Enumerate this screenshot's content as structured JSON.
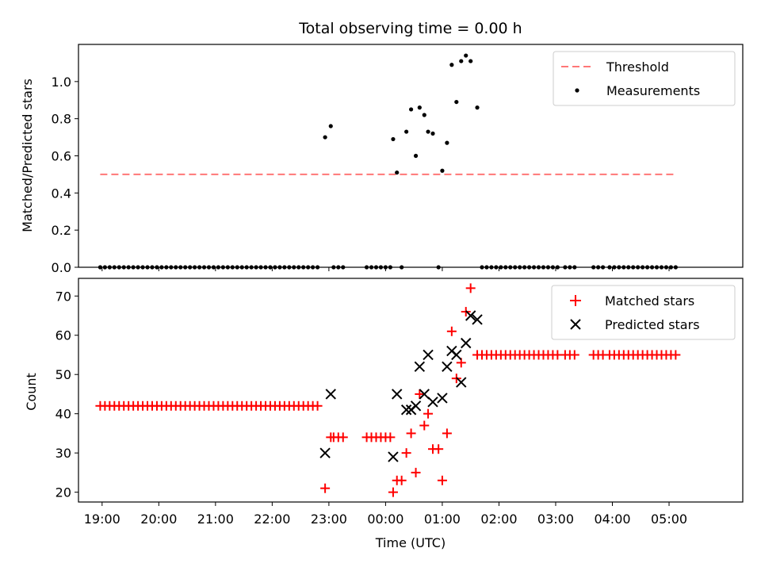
{
  "chart_data": [
    {
      "type": "scatter",
      "title": "Total observing time = 0.00 h",
      "ylabel": "Matched/Predicted stars",
      "xlabel": "",
      "xlim": [
        "18:35",
        "06:18"
      ],
      "ylim": [
        0,
        1.2
      ],
      "yticks": [
        "0.0",
        "0.2",
        "0.4",
        "0.6",
        "0.8",
        "1.0"
      ],
      "legend_position": "top-right",
      "grid": false,
      "threshold": {
        "name": "Threshold",
        "value": 0.5,
        "x_start": "18:58",
        "x_end": "05:06",
        "color": "#ff7777",
        "style": "dashed"
      },
      "measurements": {
        "name": "Measurements",
        "color": "#000000",
        "points": [
          [
            "18:58",
            0
          ],
          [
            "19:03",
            0
          ],
          [
            "19:08",
            0
          ],
          [
            "19:13",
            0
          ],
          [
            "19:18",
            0
          ],
          [
            "19:23",
            0
          ],
          [
            "19:28",
            0
          ],
          [
            "19:33",
            0
          ],
          [
            "19:38",
            0
          ],
          [
            "19:43",
            0
          ],
          [
            "19:48",
            0
          ],
          [
            "19:53",
            0
          ],
          [
            "19:58",
            0
          ],
          [
            "20:03",
            0
          ],
          [
            "20:08",
            0
          ],
          [
            "20:13",
            0
          ],
          [
            "20:18",
            0
          ],
          [
            "20:23",
            0
          ],
          [
            "20:28",
            0
          ],
          [
            "20:33",
            0
          ],
          [
            "20:38",
            0
          ],
          [
            "20:43",
            0
          ],
          [
            "20:48",
            0
          ],
          [
            "20:53",
            0
          ],
          [
            "20:58",
            0
          ],
          [
            "21:03",
            0
          ],
          [
            "21:08",
            0
          ],
          [
            "21:13",
            0
          ],
          [
            "21:18",
            0
          ],
          [
            "21:23",
            0
          ],
          [
            "21:28",
            0
          ],
          [
            "21:33",
            0
          ],
          [
            "21:38",
            0
          ],
          [
            "21:43",
            0
          ],
          [
            "21:48",
            0
          ],
          [
            "21:53",
            0
          ],
          [
            "21:58",
            0
          ],
          [
            "22:03",
            0
          ],
          [
            "22:08",
            0
          ],
          [
            "22:13",
            0
          ],
          [
            "22:18",
            0
          ],
          [
            "22:23",
            0
          ],
          [
            "22:28",
            0
          ],
          [
            "22:33",
            0
          ],
          [
            "22:38",
            0
          ],
          [
            "22:43",
            0
          ],
          [
            "22:48",
            0
          ],
          [
            "22:56",
            0.7
          ],
          [
            "23:02",
            0.76
          ],
          [
            "23:05",
            0
          ],
          [
            "23:10",
            0
          ],
          [
            "23:15",
            0
          ],
          [
            "23:40",
            0
          ],
          [
            "23:45",
            0
          ],
          [
            "23:50",
            0
          ],
          [
            "23:55",
            0
          ],
          [
            "24:00",
            0
          ],
          [
            "24:05",
            0
          ],
          [
            "24:08",
            0.69
          ],
          [
            "24:12",
            0.51
          ],
          [
            "24:17",
            0
          ],
          [
            "24:22",
            0.73
          ],
          [
            "24:27",
            0.85
          ],
          [
            "24:32",
            0.6
          ],
          [
            "24:36",
            0.86
          ],
          [
            "24:41",
            0.82
          ],
          [
            "24:45",
            0.73
          ],
          [
            "24:50",
            0.72
          ],
          [
            "24:56",
            0
          ],
          [
            "25:00",
            0.52
          ],
          [
            "25:05",
            0.67
          ],
          [
            "25:10",
            1.09
          ],
          [
            "25:15",
            0.89
          ],
          [
            "25:20",
            1.11
          ],
          [
            "25:25",
            1.14
          ],
          [
            "25:30",
            1.11
          ],
          [
            "25:37",
            0.86
          ],
          [
            "25:42",
            0
          ],
          [
            "25:47",
            0
          ],
          [
            "25:52",
            0
          ],
          [
            "25:57",
            0
          ],
          [
            "26:02",
            0
          ],
          [
            "26:07",
            0
          ],
          [
            "26:12",
            0
          ],
          [
            "26:17",
            0
          ],
          [
            "26:22",
            0
          ],
          [
            "26:27",
            0
          ],
          [
            "26:32",
            0
          ],
          [
            "26:37",
            0
          ],
          [
            "26:42",
            0
          ],
          [
            "26:47",
            0
          ],
          [
            "26:52",
            0
          ],
          [
            "26:57",
            0
          ],
          [
            "27:02",
            0
          ],
          [
            "27:10",
            0
          ],
          [
            "27:15",
            0
          ],
          [
            "27:20",
            0
          ],
          [
            "27:40",
            0
          ],
          [
            "27:45",
            0
          ],
          [
            "27:50",
            0
          ],
          [
            "27:57",
            0
          ],
          [
            "28:02",
            0
          ],
          [
            "28:07",
            0
          ],
          [
            "28:12",
            0
          ],
          [
            "28:17",
            0
          ],
          [
            "28:22",
            0
          ],
          [
            "28:27",
            0
          ],
          [
            "28:32",
            0
          ],
          [
            "28:37",
            0
          ],
          [
            "28:42",
            0
          ],
          [
            "28:47",
            0
          ],
          [
            "28:52",
            0
          ],
          [
            "28:57",
            0
          ],
          [
            "29:02",
            0
          ],
          [
            "29:07",
            0
          ]
        ]
      }
    },
    {
      "type": "scatter",
      "title": "",
      "ylabel": "Count",
      "xlabel": "Time (UTC)",
      "xlim": [
        "18:35",
        "06:18"
      ],
      "ylim": [
        17.5,
        74.5
      ],
      "xticks": [
        "19:00",
        "20:00",
        "21:00",
        "22:00",
        "23:00",
        "00:00",
        "01:00",
        "02:00",
        "03:00",
        "04:00",
        "05:00"
      ],
      "yticks": [
        "20",
        "30",
        "40",
        "50",
        "60",
        "70"
      ],
      "legend_position": "top-right",
      "grid": false,
      "series": [
        {
          "name": "Matched stars",
          "marker": "plus",
          "color": "#ff0000",
          "points": [
            [
              "18:58",
              42
            ],
            [
              "19:03",
              42
            ],
            [
              "19:08",
              42
            ],
            [
              "19:13",
              42
            ],
            [
              "19:18",
              42
            ],
            [
              "19:23",
              42
            ],
            [
              "19:28",
              42
            ],
            [
              "19:33",
              42
            ],
            [
              "19:38",
              42
            ],
            [
              "19:43",
              42
            ],
            [
              "19:48",
              42
            ],
            [
              "19:53",
              42
            ],
            [
              "19:58",
              42
            ],
            [
              "20:03",
              42
            ],
            [
              "20:08",
              42
            ],
            [
              "20:13",
              42
            ],
            [
              "20:18",
              42
            ],
            [
              "20:23",
              42
            ],
            [
              "20:28",
              42
            ],
            [
              "20:33",
              42
            ],
            [
              "20:38",
              42
            ],
            [
              "20:43",
              42
            ],
            [
              "20:48",
              42
            ],
            [
              "20:53",
              42
            ],
            [
              "20:58",
              42
            ],
            [
              "21:03",
              42
            ],
            [
              "21:08",
              42
            ],
            [
              "21:13",
              42
            ],
            [
              "21:18",
              42
            ],
            [
              "21:23",
              42
            ],
            [
              "21:28",
              42
            ],
            [
              "21:33",
              42
            ],
            [
              "21:38",
              42
            ],
            [
              "21:43",
              42
            ],
            [
              "21:48",
              42
            ],
            [
              "21:53",
              42
            ],
            [
              "21:58",
              42
            ],
            [
              "22:03",
              42
            ],
            [
              "22:08",
              42
            ],
            [
              "22:13",
              42
            ],
            [
              "22:18",
              42
            ],
            [
              "22:23",
              42
            ],
            [
              "22:28",
              42
            ],
            [
              "22:33",
              42
            ],
            [
              "22:38",
              42
            ],
            [
              "22:43",
              42
            ],
            [
              "22:48",
              42
            ],
            [
              "22:56",
              21
            ],
            [
              "23:02",
              34
            ],
            [
              "23:05",
              34
            ],
            [
              "23:10",
              34
            ],
            [
              "23:15",
              34
            ],
            [
              "23:40",
              34
            ],
            [
              "23:45",
              34
            ],
            [
              "23:50",
              34
            ],
            [
              "23:55",
              34
            ],
            [
              "24:00",
              34
            ],
            [
              "24:05",
              34
            ],
            [
              "24:08",
              20
            ],
            [
              "24:12",
              23
            ],
            [
              "24:17",
              23
            ],
            [
              "24:22",
              30
            ],
            [
              "24:27",
              35
            ],
            [
              "24:32",
              25
            ],
            [
              "24:36",
              45
            ],
            [
              "24:41",
              37
            ],
            [
              "24:45",
              40
            ],
            [
              "24:50",
              31
            ],
            [
              "24:56",
              31
            ],
            [
              "25:00",
              23
            ],
            [
              "25:05",
              35
            ],
            [
              "25:10",
              61
            ],
            [
              "25:15",
              49
            ],
            [
              "25:20",
              53
            ],
            [
              "25:25",
              66
            ],
            [
              "25:30",
              72
            ],
            [
              "25:37",
              55
            ],
            [
              "25:42",
              55
            ],
            [
              "25:47",
              55
            ],
            [
              "25:52",
              55
            ],
            [
              "25:57",
              55
            ],
            [
              "26:02",
              55
            ],
            [
              "26:07",
              55
            ],
            [
              "26:12",
              55
            ],
            [
              "26:17",
              55
            ],
            [
              "26:22",
              55
            ],
            [
              "26:27",
              55
            ],
            [
              "26:32",
              55
            ],
            [
              "26:37",
              55
            ],
            [
              "26:42",
              55
            ],
            [
              "26:47",
              55
            ],
            [
              "26:52",
              55
            ],
            [
              "26:57",
              55
            ],
            [
              "27:02",
              55
            ],
            [
              "27:10",
              55
            ],
            [
              "27:15",
              55
            ],
            [
              "27:20",
              55
            ],
            [
              "27:40",
              55
            ],
            [
              "27:45",
              55
            ],
            [
              "27:50",
              55
            ],
            [
              "27:57",
              55
            ],
            [
              "28:02",
              55
            ],
            [
              "28:07",
              55
            ],
            [
              "28:12",
              55
            ],
            [
              "28:17",
              55
            ],
            [
              "28:22",
              55
            ],
            [
              "28:27",
              55
            ],
            [
              "28:32",
              55
            ],
            [
              "28:37",
              55
            ],
            [
              "28:42",
              55
            ],
            [
              "28:47",
              55
            ],
            [
              "28:52",
              55
            ],
            [
              "28:57",
              55
            ],
            [
              "29:02",
              55
            ],
            [
              "29:07",
              55
            ]
          ]
        },
        {
          "name": "Predicted stars",
          "marker": "x",
          "color": "#000000",
          "points": [
            [
              "22:56",
              30
            ],
            [
              "23:02",
              45
            ],
            [
              "24:08",
              29
            ],
            [
              "24:12",
              45
            ],
            [
              "24:22",
              41
            ],
            [
              "24:27",
              41
            ],
            [
              "24:32",
              42
            ],
            [
              "24:36",
              52
            ],
            [
              "24:41",
              45
            ],
            [
              "24:45",
              55
            ],
            [
              "24:50",
              43
            ],
            [
              "25:00",
              44
            ],
            [
              "25:05",
              52
            ],
            [
              "25:10",
              56
            ],
            [
              "25:15",
              55
            ],
            [
              "25:20",
              48
            ],
            [
              "25:25",
              58
            ],
            [
              "25:30",
              65
            ],
            [
              "25:37",
              64
            ]
          ]
        }
      ]
    }
  ]
}
